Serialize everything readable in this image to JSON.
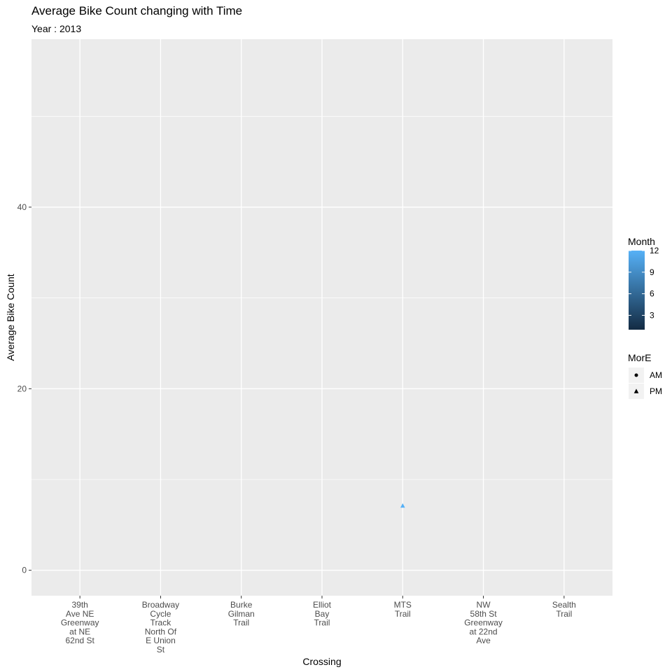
{
  "title": "Average Bike Count changing with Time",
  "subtitle": "Year : 2013",
  "chart_data": {
    "type": "scatter",
    "title": "Average Bike Count changing with Time",
    "subtitle": "Year : 2013",
    "xlabel": "Crossing",
    "ylabel": "Average Bike Count",
    "categories": [
      [
        "39th",
        "Ave NE",
        "Greenway",
        "at NE",
        "62nd St"
      ],
      [
        "Broadway",
        "Cycle",
        "Track",
        "North Of",
        "E Union",
        "St"
      ],
      [
        "Burke",
        "Gilman",
        "Trail"
      ],
      [
        "Elliot",
        "Bay",
        "Trail"
      ],
      [
        "MTS",
        "Trail"
      ],
      [
        "NW",
        "58th St",
        "Greenway",
        "at 22nd",
        "Ave"
      ],
      [
        "Sealth",
        "Trail"
      ]
    ],
    "ylim": [
      -2.8,
      58.5
    ],
    "y_ticks": [
      0,
      20,
      40
    ],
    "grid": true,
    "points": [
      {
        "category_index": 4,
        "y": 7.1,
        "shape": "triangle",
        "MorE": "PM",
        "month": 12,
        "color": "#56B1F7"
      }
    ],
    "color_legend": {
      "title": "Month",
      "ticks": [
        3,
        6,
        9,
        12
      ],
      "range": [
        1,
        12
      ],
      "low_color": "#132B43",
      "high_color": "#56B1F7"
    },
    "shape_legend": {
      "title": "MorE",
      "items": [
        {
          "label": "AM",
          "shape": "circle"
        },
        {
          "label": "PM",
          "shape": "triangle"
        }
      ]
    },
    "legend_position": "right",
    "panel_color": "#EBEBEB",
    "grid_color": "#FFFFFF"
  }
}
